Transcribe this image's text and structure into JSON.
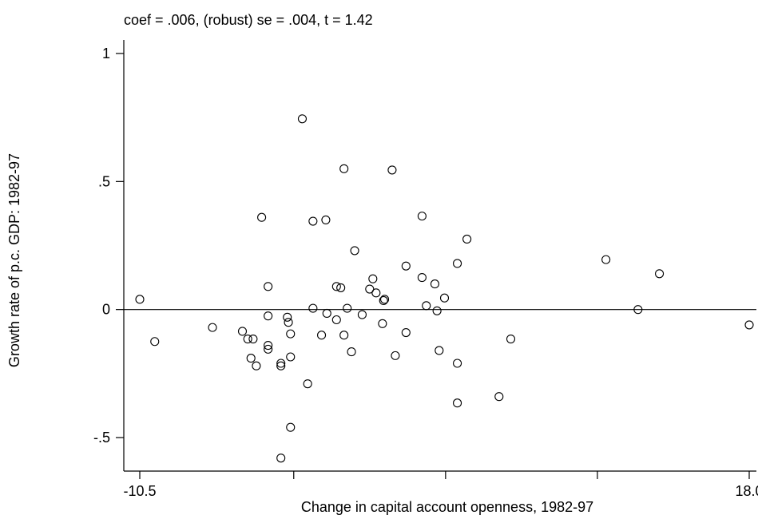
{
  "chart_data": {
    "type": "scatter",
    "title": "",
    "subtitle": "coef = .006, (robust) se = .004, t = 1.42",
    "xlabel": "Change in capital account openness, 1982-97",
    "ylabel": "Growth rate of p.c. GDP: 1982-97",
    "xlim": [
      -10.5,
      18.0
    ],
    "ylim": [
      -0.5,
      1.0
    ],
    "x_ticks": [
      {
        "value": -10.5,
        "label": "-10.5"
      },
      {
        "value": -3.3,
        "label": ""
      },
      {
        "value": 3.8,
        "label": ""
      },
      {
        "value": 10.9,
        "label": ""
      },
      {
        "value": 18.0,
        "label": "18.0"
      }
    ],
    "y_ticks": [
      {
        "value": -0.5,
        "label": "-.5"
      },
      {
        "value": 0,
        "label": "0"
      },
      {
        "value": 0.5,
        "label": ".5"
      },
      {
        "value": 1,
        "label": "1"
      }
    ],
    "reference_line": {
      "y": 0
    },
    "grid": false,
    "points": [
      {
        "x": -10.5,
        "y": 0.04
      },
      {
        "x": -9.8,
        "y": -0.125
      },
      {
        "x": -7.1,
        "y": -0.07
      },
      {
        "x": -5.7,
        "y": -0.085
      },
      {
        "x": -5.45,
        "y": -0.115
      },
      {
        "x": -5.2,
        "y": -0.115
      },
      {
        "x": -5.3,
        "y": -0.19
      },
      {
        "x": -5.05,
        "y": -0.22
      },
      {
        "x": -4.8,
        "y": 0.36
      },
      {
        "x": -4.5,
        "y": 0.09
      },
      {
        "x": -4.5,
        "y": -0.025
      },
      {
        "x": -4.5,
        "y": -0.14
      },
      {
        "x": -4.5,
        "y": -0.155
      },
      {
        "x": -3.9,
        "y": -0.21
      },
      {
        "x": -3.9,
        "y": -0.22
      },
      {
        "x": -3.9,
        "y": -0.58
      },
      {
        "x": -3.6,
        "y": -0.03
      },
      {
        "x": -3.55,
        "y": -0.05
      },
      {
        "x": -3.45,
        "y": -0.095
      },
      {
        "x": -3.45,
        "y": -0.185
      },
      {
        "x": -3.45,
        "y": -0.46
      },
      {
        "x": -2.9,
        "y": 0.745
      },
      {
        "x": -2.65,
        "y": -0.29
      },
      {
        "x": -2.4,
        "y": 0.345
      },
      {
        "x": -2.4,
        "y": 0.005
      },
      {
        "x": -2.0,
        "y": -0.1
      },
      {
        "x": -1.8,
        "y": 0.35
      },
      {
        "x": -1.75,
        "y": -0.015
      },
      {
        "x": -1.3,
        "y": 0.09
      },
      {
        "x": -1.3,
        "y": -0.04
      },
      {
        "x": -1.1,
        "y": 0.085
      },
      {
        "x": -0.95,
        "y": 0.55
      },
      {
        "x": -0.95,
        "y": -0.1
      },
      {
        "x": -0.8,
        "y": 0.005
      },
      {
        "x": -0.6,
        "y": -0.165
      },
      {
        "x": -0.45,
        "y": 0.23
      },
      {
        "x": -0.1,
        "y": -0.02
      },
      {
        "x": 0.25,
        "y": 0.08
      },
      {
        "x": 0.4,
        "y": 0.12
      },
      {
        "x": 0.55,
        "y": 0.065
      },
      {
        "x": 0.85,
        "y": -0.055
      },
      {
        "x": 0.9,
        "y": 0.035
      },
      {
        "x": 0.95,
        "y": 0.04
      },
      {
        "x": 1.3,
        "y": 0.545
      },
      {
        "x": 1.45,
        "y": -0.18
      },
      {
        "x": 1.95,
        "y": 0.17
      },
      {
        "x": 1.95,
        "y": -0.09
      },
      {
        "x": 2.7,
        "y": 0.365
      },
      {
        "x": 2.7,
        "y": 0.125
      },
      {
        "x": 2.9,
        "y": 0.015
      },
      {
        "x": 3.3,
        "y": 0.1
      },
      {
        "x": 3.4,
        "y": -0.005
      },
      {
        "x": 3.5,
        "y": -0.16
      },
      {
        "x": 3.75,
        "y": 0.045
      },
      {
        "x": 4.35,
        "y": 0.18
      },
      {
        "x": 4.35,
        "y": -0.21
      },
      {
        "x": 4.35,
        "y": -0.365
      },
      {
        "x": 4.8,
        "y": 0.275
      },
      {
        "x": 6.3,
        "y": -0.34
      },
      {
        "x": 6.85,
        "y": -0.115
      },
      {
        "x": 11.3,
        "y": 0.195
      },
      {
        "x": 12.8,
        "y": 0.0
      },
      {
        "x": 13.8,
        "y": 0.14
      },
      {
        "x": 18.0,
        "y": -0.06
      }
    ]
  }
}
